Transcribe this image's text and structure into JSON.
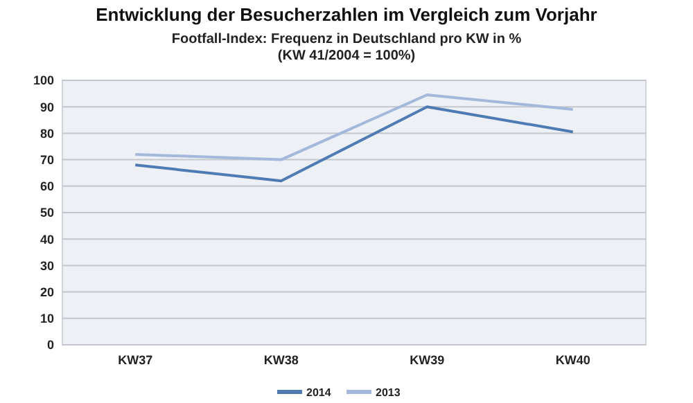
{
  "chart_data": {
    "type": "line",
    "title": "Entwicklung der Besucherzahlen im Vergleich zum Vorjahr",
    "subtitle": "Footfall-Index: Frequenz in Deutschland pro KW in %\n(KW 41/2004 = 100%)",
    "categories": [
      "KW37",
      "KW38",
      "KW39",
      "KW40"
    ],
    "series": [
      {
        "name": "2014",
        "color": "#4f7bb5",
        "values": [
          68,
          62,
          90,
          80.5
        ]
      },
      {
        "name": "2013",
        "color": "#a3b8db",
        "values": [
          72,
          70,
          94.5,
          89
        ]
      }
    ],
    "ylim": [
      0,
      100
    ],
    "yticks": [
      0,
      10,
      20,
      30,
      40,
      50,
      60,
      70,
      80,
      90,
      100
    ],
    "grid": "y",
    "legend": "bottom",
    "marker": "none",
    "line_style": "solid"
  }
}
